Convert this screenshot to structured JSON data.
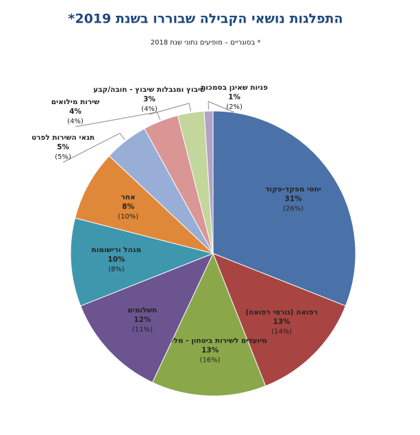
{
  "chart_data": {
    "type": "pie",
    "title": "התפלגות נושאי הקבילה שבוררו בשנת 2019*",
    "subtitle": "* בסוגריים – מופיעים נתוני שנת 2018",
    "categories": [
      "יחסי מפקד-פקוד",
      "רפואה (גורמי רפואה)",
      "מיועדים לשירות ביטחון - מלש\"בים",
      "תשלומים",
      "מנהל ורישומות",
      "אחר",
      "תנאי השירות לפרט",
      "שירות מילואים",
      "שיבוץ ומגבלות שיבוץ - חובה/קבע",
      "פניות שאינן בסמכות"
    ],
    "values": [
      31,
      13,
      13,
      12,
      10,
      8,
      5,
      4,
      3,
      1
    ],
    "value_labels": [
      "31%",
      "13%",
      "13%",
      "12%",
      "10%",
      "8%",
      "5%",
      "4%",
      "3%",
      "1%"
    ],
    "previous_value_labels": [
      "(26%)",
      "(14%)",
      "(16%)",
      "(11%)",
      "(8%)",
      "(10%)",
      "(5%)",
      "(4%)",
      "(4%)",
      "(2%)"
    ],
    "colors": [
      "#4a72a8",
      "#a84442",
      "#8aa84a",
      "#6c5490",
      "#3f97ad",
      "#e0883a",
      "#98aed6",
      "#d99694",
      "#c3d69b",
      "#b3a2c7"
    ]
  }
}
